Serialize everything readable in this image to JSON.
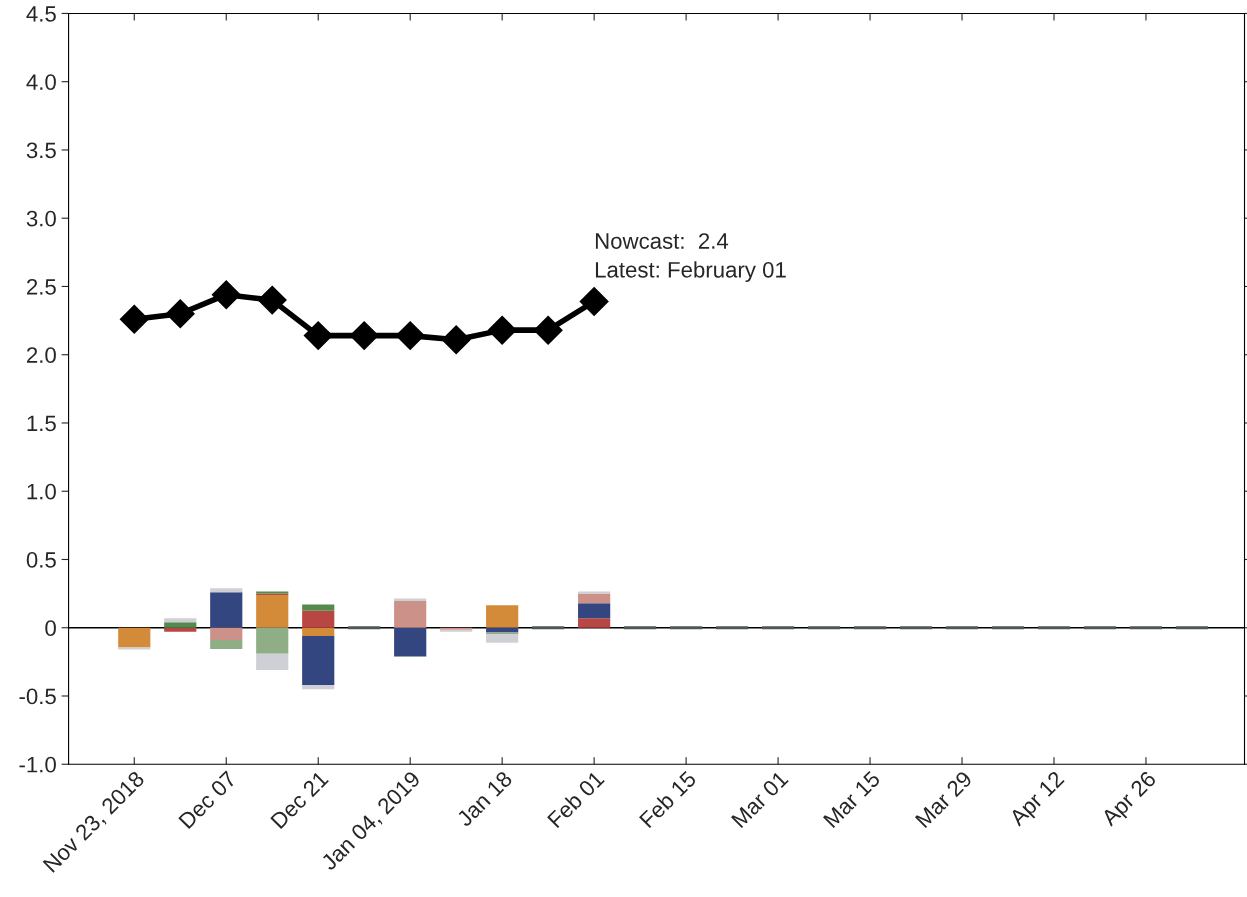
{
  "chart_data": {
    "type": "bar",
    "stacked": true,
    "x": [
      "2018-11-23",
      "2018-11-30",
      "2018-12-07",
      "2018-12-14",
      "2018-12-21",
      "2018-12-28",
      "2019-01-04",
      "2019-01-11",
      "2019-01-18",
      "2019-01-25",
      "2019-02-01",
      "2019-02-08",
      "2019-02-15",
      "2019-02-22",
      "2019-03-01",
      "2019-03-08",
      "2019-03-15",
      "2019-03-22",
      "2019-03-29",
      "2019-04-05",
      "2019-04-12",
      "2019-04-19",
      "2019-04-26",
      "2019-05-03"
    ],
    "series": [
      {
        "color": "#d38b3a",
        "values": [
          -0.145,
          null,
          null,
          0.24,
          -0.06,
          null,
          null,
          null,
          0.165,
          null,
          null,
          null,
          null,
          null,
          null,
          null,
          null,
          null,
          null,
          null,
          null,
          null,
          null,
          null
        ]
      },
      {
        "color": "#b84744",
        "values": [
          null,
          -0.03,
          null,
          0.01,
          0.125,
          null,
          null,
          null,
          null,
          null,
          0.07,
          null,
          null,
          null,
          null,
          null,
          null,
          null,
          null,
          null,
          null,
          null,
          null,
          null
        ]
      },
      {
        "color": "#548a4c",
        "values": [
          null,
          0.04,
          null,
          0.015,
          0.045,
          null,
          null,
          null,
          null,
          null,
          null,
          null,
          null,
          null,
          null,
          null,
          null,
          null,
          null,
          null,
          null,
          null,
          null,
          null
        ]
      },
      {
        "color": "#34467f",
        "values": [
          null,
          null,
          0.26,
          null,
          -0.36,
          null,
          -0.21,
          null,
          -0.035,
          null,
          0.11,
          null,
          null,
          null,
          null,
          null,
          null,
          null,
          null,
          null,
          null,
          null,
          null,
          null
        ]
      },
      {
        "color": "#cc9188",
        "values": [
          null,
          null,
          -0.09,
          null,
          null,
          null,
          0.195,
          -0.015,
          null,
          null,
          0.07,
          null,
          null,
          null,
          null,
          null,
          null,
          null,
          null,
          null,
          null,
          null,
          null,
          null
        ]
      },
      {
        "color": "#8fae86",
        "values": [
          null,
          null,
          -0.065,
          -0.19,
          null,
          null,
          -0.005,
          null,
          -0.015,
          null,
          null,
          null,
          null,
          null,
          null,
          null,
          null,
          null,
          null,
          null,
          null,
          null,
          null,
          null
        ]
      },
      {
        "color": "#cfcfd6",
        "values": [
          -0.015,
          0.03,
          0.03,
          -0.12,
          -0.03,
          null,
          0.02,
          -0.015,
          -0.06,
          null,
          0.015,
          null,
          null,
          null,
          null,
          null,
          null,
          null,
          null,
          null,
          null,
          null,
          null,
          null
        ]
      },
      {
        "color": "#4d5a52",
        "values": [
          null,
          null,
          null,
          null,
          null,
          0,
          null,
          null,
          null,
          0,
          null,
          0,
          0,
          0,
          0,
          0,
          0,
          0,
          0,
          0,
          0,
          0,
          0,
          0
        ]
      },
      {
        "type": "line",
        "color": "#000000",
        "marker": "diamond",
        "x": [
          "2018-11-23",
          "2018-11-30",
          "2018-12-07",
          "2018-12-14",
          "2018-12-21",
          "2018-12-28",
          "2019-01-04",
          "2019-01-11",
          "2019-01-18",
          "2019-01-25",
          "2019-02-01"
        ],
        "values": [
          2.26,
          2.3,
          2.44,
          2.4,
          2.14,
          2.14,
          2.14,
          2.11,
          2.18,
          2.18,
          2.39
        ]
      }
    ],
    "xlim": [
      "2018-11-13",
      "2019-05-11"
    ],
    "xticks": [
      {
        "value": "2018-11-23",
        "label": "Nov 23, 2018"
      },
      {
        "value": "2018-12-07",
        "label": "Dec 07"
      },
      {
        "value": "2018-12-21",
        "label": "Dec 21"
      },
      {
        "value": "2019-01-04",
        "label": "Jan 04, 2019"
      },
      {
        "value": "2019-01-18",
        "label": "Jan 18"
      },
      {
        "value": "2019-02-01",
        "label": "Feb 01"
      },
      {
        "value": "2019-02-15",
        "label": "Feb 15"
      },
      {
        "value": "2019-03-01",
        "label": "Mar 01"
      },
      {
        "value": "2019-03-15",
        "label": "Mar 15"
      },
      {
        "value": "2019-03-29",
        "label": "Mar 29"
      },
      {
        "value": "2019-04-12",
        "label": "Apr 12"
      },
      {
        "value": "2019-04-26",
        "label": "Apr 26"
      }
    ],
    "ylim": [
      -1.0,
      4.5
    ],
    "yticks": [
      {
        "value": -1.0,
        "label": "-1.0"
      },
      {
        "value": -0.5,
        "label": "-0.5"
      },
      {
        "value": 0,
        "label": "0"
      },
      {
        "value": 0.5,
        "label": "0.5"
      },
      {
        "value": 1.0,
        "label": "1.0"
      },
      {
        "value": 1.5,
        "label": "1.5"
      },
      {
        "value": 2.0,
        "label": "2.0"
      },
      {
        "value": 2.5,
        "label": "2.5"
      },
      {
        "value": 3.0,
        "label": "3.0"
      },
      {
        "value": 3.5,
        "label": "3.5"
      },
      {
        "value": 4.0,
        "label": "4.0"
      },
      {
        "value": 4.5,
        "label": "4.5"
      }
    ],
    "ref_lines": [
      {
        "axis": "y",
        "value": 0,
        "color": "#000000"
      }
    ],
    "annotations": [
      {
        "text": "Nowcast:  2.4\nLatest: February 01",
        "x": "2019-02-01",
        "y": 2.39
      }
    ],
    "grid": false,
    "legend": false
  }
}
